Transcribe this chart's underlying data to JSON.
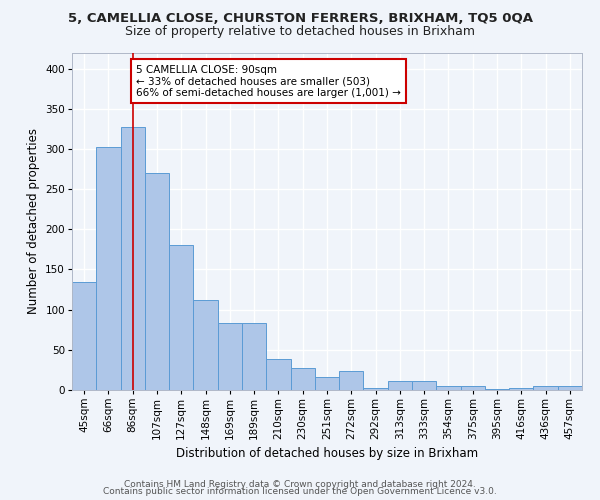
{
  "title1": "5, CAMELLIA CLOSE, CHURSTON FERRERS, BRIXHAM, TQ5 0QA",
  "title2": "Size of property relative to detached houses in Brixham",
  "xlabel": "Distribution of detached houses by size in Brixham",
  "ylabel": "Number of detached properties",
  "categories": [
    "45sqm",
    "66sqm",
    "86sqm",
    "107sqm",
    "127sqm",
    "148sqm",
    "169sqm",
    "189sqm",
    "210sqm",
    "230sqm",
    "251sqm",
    "272sqm",
    "292sqm",
    "313sqm",
    "333sqm",
    "354sqm",
    "375sqm",
    "395sqm",
    "416sqm",
    "436sqm",
    "457sqm"
  ],
  "values": [
    134,
    303,
    327,
    270,
    181,
    112,
    84,
    84,
    38,
    27,
    16,
    24,
    3,
    11,
    11,
    5,
    5,
    1,
    3,
    5,
    5
  ],
  "bar_color": "#aec6e8",
  "bar_edge_color": "#5b9bd5",
  "vline_x": 2.0,
  "vline_color": "#cc0000",
  "annotation_text": "5 CAMELLIA CLOSE: 90sqm\n← 33% of detached houses are smaller (503)\n66% of semi-detached houses are larger (1,001) →",
  "annotation_box_color": "#ffffff",
  "annotation_box_edge": "#cc0000",
  "footer1": "Contains HM Land Registry data © Crown copyright and database right 2024.",
  "footer2": "Contains public sector information licensed under the Open Government Licence v3.0.",
  "bg_color": "#f0f4fa",
  "grid_color": "#ffffff",
  "ylim": [
    0,
    420
  ],
  "yticks": [
    0,
    50,
    100,
    150,
    200,
    250,
    300,
    350,
    400
  ],
  "title1_fontsize": 9.5,
  "title2_fontsize": 9,
  "axis_label_fontsize": 8.5,
  "tick_fontsize": 7.5,
  "footer_fontsize": 6.5,
  "annot_fontsize": 7.5
}
